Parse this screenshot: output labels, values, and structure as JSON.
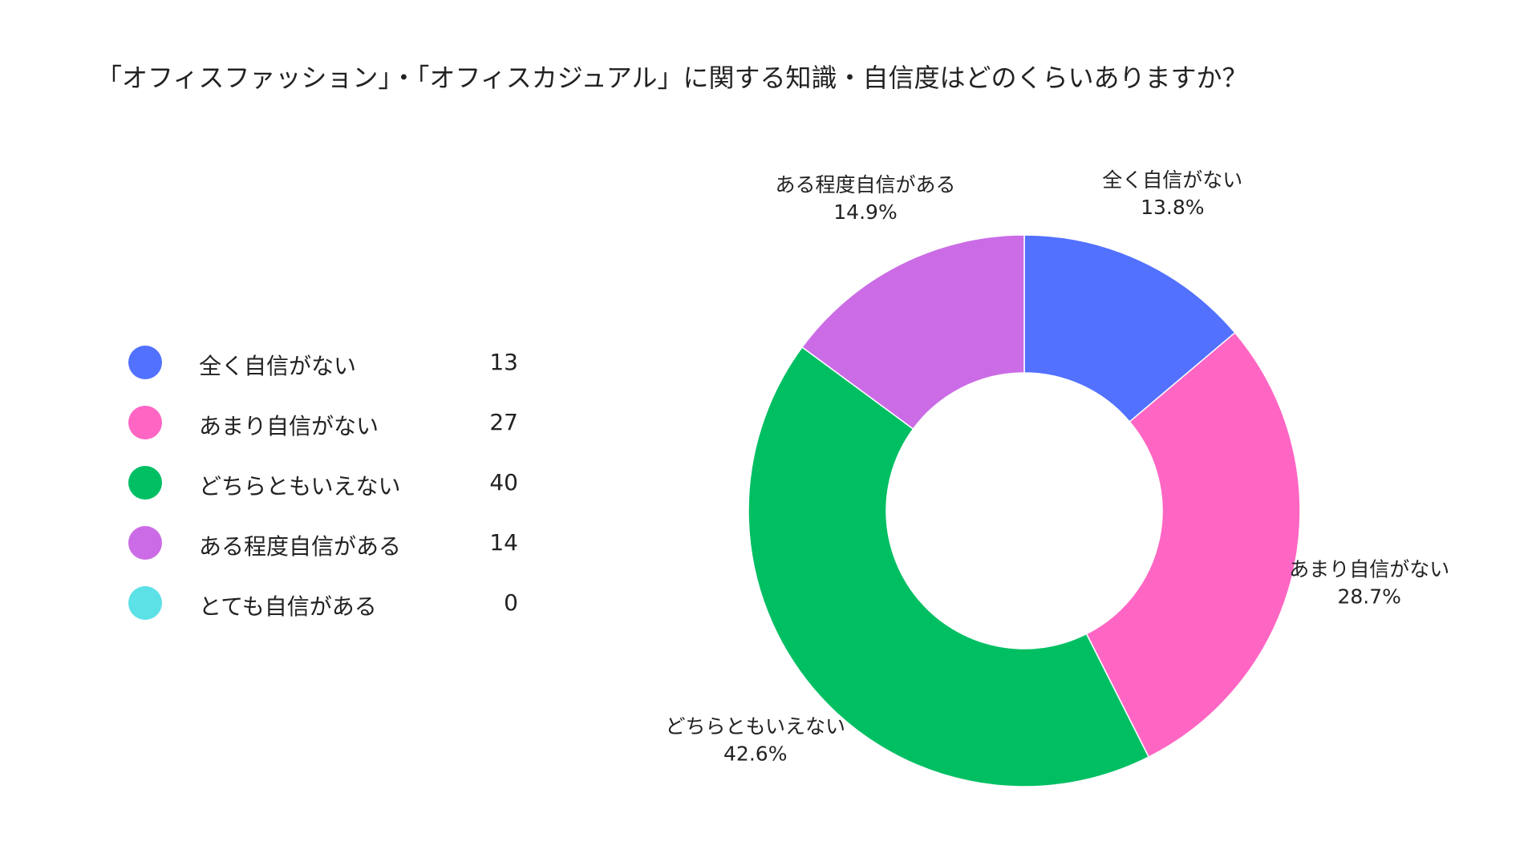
{
  "chart_data": {
    "type": "pie",
    "title": "「オフィスファッション」・「オフィスカジュアル」に関する知識・自信度はどのくらいありますか？",
    "categories": [
      "全く自信がない",
      "あまり自信がない",
      "どちらともいえない",
      "ある程度自信がある",
      "とても自信がある"
    ],
    "values": [
      13,
      27,
      40,
      14,
      0
    ],
    "percent_labels": [
      "13.8%",
      "28.7%",
      "42.6%",
      "14.9%",
      "0%"
    ],
    "colors": [
      "#5271FF",
      "#FF66C4",
      "#00BF63",
      "#CB6CE6",
      "#5CE1E6"
    ],
    "legend_position": "left",
    "donut": true
  }
}
